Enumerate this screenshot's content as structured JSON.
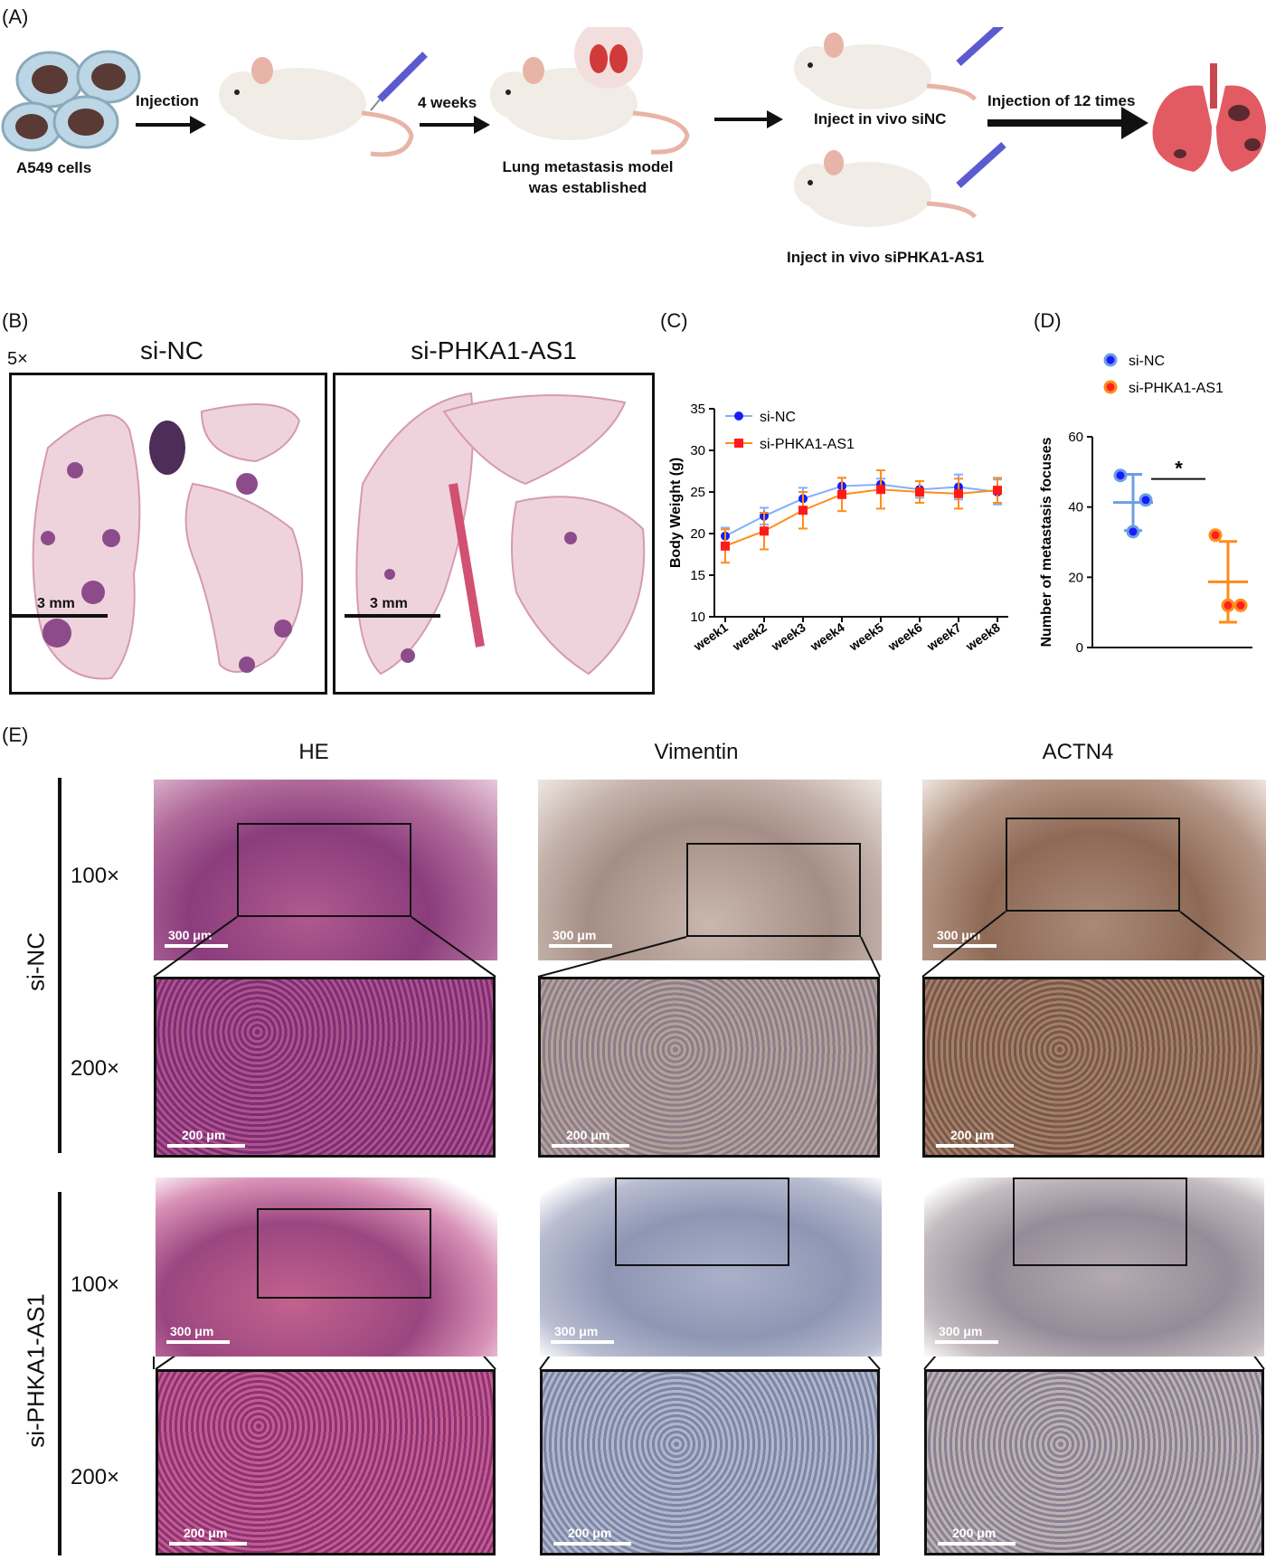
{
  "panelA": {
    "letter": "(A)",
    "cells_label": "A549 cells",
    "step1": "Injection",
    "step2": "4 weeks",
    "model_label_1": "Lung metastasis model",
    "model_label_2": "was established",
    "group1": "Inject in vivo siNC",
    "group2": "Inject in vivo siPHKA1-AS1",
    "step3": "Injection of 12 times"
  },
  "panelB": {
    "letter": "(B)",
    "mag": "5×",
    "titles": [
      "si-NC",
      "si-PHKA1-AS1"
    ],
    "scalebar": "3 mm"
  },
  "panelC": {
    "letter": "(C)",
    "chart_data": {
      "type": "line",
      "ylabel": "Body Weight (g)",
      "xlabel": "",
      "categories": [
        "week1",
        "week2",
        "week3",
        "week4",
        "week5",
        "week6",
        "week7",
        "week8"
      ],
      "ylim": [
        10,
        35
      ],
      "yticks": [
        10,
        15,
        20,
        25,
        30,
        35
      ],
      "legend_position": "top-left",
      "series": [
        {
          "name": "si-NC",
          "color": "#1a1aff",
          "line_color": "#7fb0ff",
          "marker": "circle",
          "values": [
            19.7,
            22.1,
            24.2,
            25.7,
            25.9,
            25.3,
            25.6,
            25.0
          ],
          "errors": [
            1.0,
            1.0,
            1.3,
            1.0,
            0.7,
            1.0,
            1.5,
            1.5
          ]
        },
        {
          "name": "si-PHKA1-AS1",
          "color": "#ff1a1a",
          "line_color": "#ff8c1a",
          "marker": "square",
          "values": [
            18.5,
            20.3,
            22.8,
            24.7,
            25.3,
            25.0,
            24.8,
            25.2
          ],
          "errors": [
            2.0,
            2.2,
            2.2,
            2.0,
            2.3,
            1.3,
            1.8,
            1.5
          ]
        }
      ]
    }
  },
  "panelD": {
    "letter": "(D)",
    "chart_data": {
      "type": "scatter",
      "ylabel": "Number of metastasis focuses",
      "ylim": [
        0,
        60
      ],
      "yticks": [
        0,
        20,
        40,
        60
      ],
      "legend_position": "top-left",
      "significance": "*",
      "series": [
        {
          "name": "si-NC",
          "color": "#1a1aff",
          "line_color": "#6aa0e0",
          "points": [
            49,
            33,
            42
          ],
          "mean": 41.3,
          "sd": 8.0
        },
        {
          "name": "si-PHKA1-AS1",
          "color": "#ff2020",
          "line_color": "#ff8c1a",
          "points": [
            32,
            12,
            12
          ],
          "mean": 18.7,
          "sd": 11.5
        }
      ]
    }
  },
  "panelE": {
    "letter": "(E)",
    "columns": [
      "HE",
      "Vimentin",
      "ACTN4"
    ],
    "rows": [
      "si-NC",
      "si-PHKA1-AS1"
    ],
    "mags": [
      "100×",
      "200×"
    ],
    "scale100": "300 μm",
    "scale200": "200 μm"
  }
}
